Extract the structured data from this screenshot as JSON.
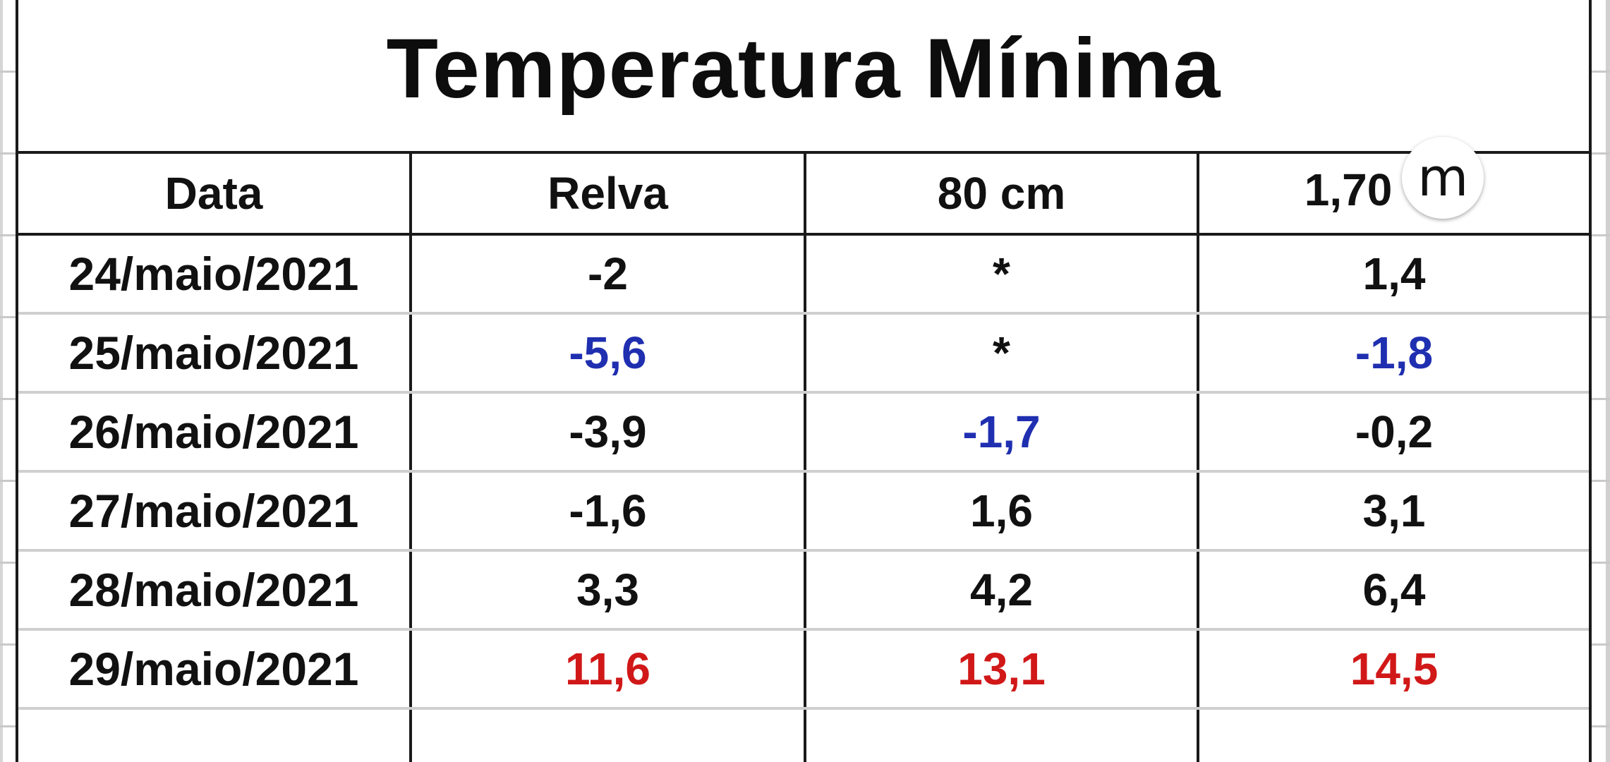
{
  "title": "Temperatura Mínima",
  "table": {
    "headers": {
      "date": "Data",
      "col1": "Relva",
      "col2": "80 cm",
      "col3_value": "1,70",
      "col3_unit": "m"
    },
    "rows": [
      {
        "date": "24/maio/2021",
        "relva": "-2",
        "cm80": "*",
        "m170": "1,4"
      },
      {
        "date": "25/maio/2021",
        "relva": "-5,6",
        "cm80": "*",
        "m170": "-1,8"
      },
      {
        "date": "26/maio/2021",
        "relva": "-3,9",
        "cm80": "-1,7",
        "m170": "-0,2"
      },
      {
        "date": "27/maio/2021",
        "relva": "-1,6",
        "cm80": "1,6",
        "m170": "3,1"
      },
      {
        "date": "28/maio/2021",
        "relva": "3,3",
        "cm80": "4,2",
        "m170": "6,4"
      },
      {
        "date": "29/maio/2021",
        "relva": "11,6",
        "cm80": "13,1",
        "m170": "14,5"
      }
    ]
  },
  "colors": {
    "lowest_value": "#1f2fb0",
    "highest_value": "#d11818",
    "default_value": "#111111"
  }
}
